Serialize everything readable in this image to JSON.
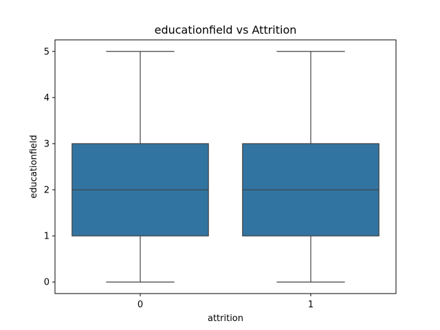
{
  "chart_data": {
    "type": "box",
    "title": "educationfield vs Attrition",
    "xlabel": "attrition",
    "ylabel": "educationfield",
    "categories": [
      "0",
      "1"
    ],
    "ylim": [
      -0.25,
      5.25
    ],
    "yticks": [
      0,
      1,
      2,
      3,
      4,
      5
    ],
    "boxes": [
      {
        "category": "0",
        "min": 0,
        "q1": 1,
        "median": 2,
        "q3": 3,
        "max": 5
      },
      {
        "category": "1",
        "min": 0,
        "q1": 1,
        "median": 2,
        "q3": 3,
        "max": 5
      }
    ],
    "grid": false,
    "colors": {
      "box_fill": "#3274a1",
      "edge": "#3f3f3f"
    }
  }
}
